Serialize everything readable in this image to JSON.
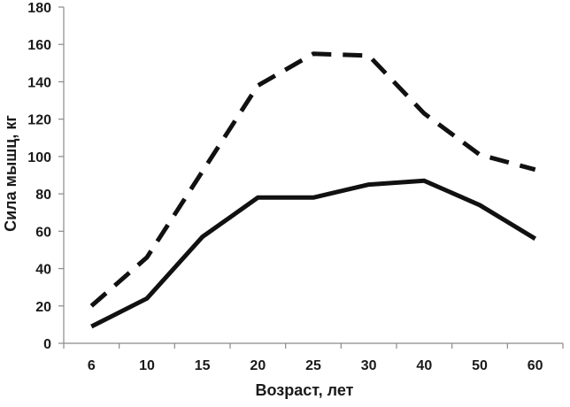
{
  "chart_data": {
    "type": "line",
    "title": "",
    "xlabel": "Возраст, лет",
    "ylabel": "Сила мышц, кг",
    "categories": [
      "6",
      "10",
      "15",
      "20",
      "25",
      "30",
      "40",
      "50",
      "60"
    ],
    "ylim": [
      0,
      180
    ],
    "yticks": [
      "0",
      "20",
      "40",
      "60",
      "80",
      "100",
      "120",
      "140",
      "160",
      "180"
    ],
    "grid": false,
    "legend": "none",
    "series": [
      {
        "style": "dashed",
        "color": "#111111",
        "values": [
          20,
          46,
          92,
          138,
          155,
          154,
          123,
          101,
          93
        ]
      },
      {
        "style": "solid",
        "color": "#111111",
        "values": [
          9,
          24,
          57,
          78,
          78,
          85,
          87,
          74,
          56
        ]
      }
    ]
  }
}
